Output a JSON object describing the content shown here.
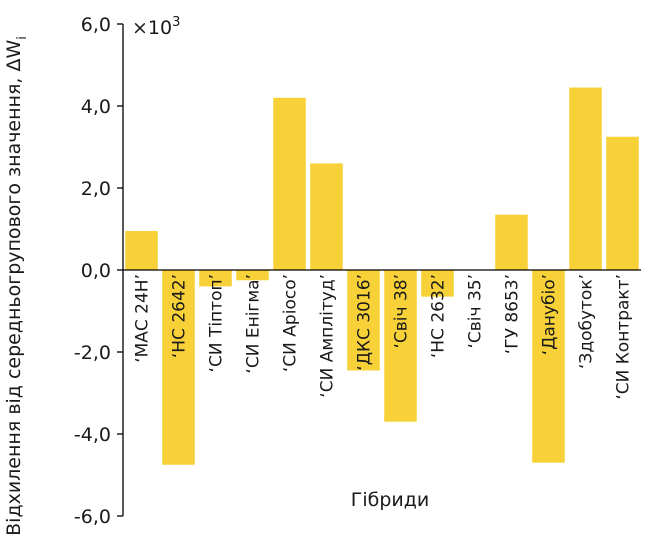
{
  "chart_data": {
    "type": "bar",
    "title": "",
    "xlabel": "Гібриди",
    "ylabel": "Відхилення від середньогрупового значення, ΔW",
    "ylabel_subscript": "i",
    "multiplier": "×10",
    "multiplier_exp": "3",
    "ylim": [
      -6.0,
      6.0
    ],
    "yticks": [
      6.0,
      4.0,
      2.0,
      0.0,
      -2.0,
      -4.0,
      -6.0
    ],
    "ytick_labels": [
      "6,0",
      "4,0",
      "2,0",
      "0,0",
      "-2,0",
      "-4,0",
      "-6,0"
    ],
    "categories": [
      "‘МАС 24Н’",
      "‘НС 2642’",
      "‘СИ Тіптоп’",
      "‘СИ Енігма’",
      "‘СИ Аріосо’",
      "‘СИ Амплітуд’",
      "‘ДКС 3016’",
      "‘Свіч 38’",
      "‘НС 2632’",
      "‘Свіч 35’",
      "‘ГУ 8653’",
      "‘Данубіо’",
      "‘Здобуток’",
      "‘СИ Контракт’"
    ],
    "values": [
      0.95,
      -4.75,
      -0.4,
      -0.25,
      4.2,
      2.6,
      -2.45,
      -3.7,
      -0.65,
      0.0,
      1.35,
      -4.7,
      4.45,
      3.25
    ],
    "bar_color": "#f7d137",
    "grid": false
  }
}
